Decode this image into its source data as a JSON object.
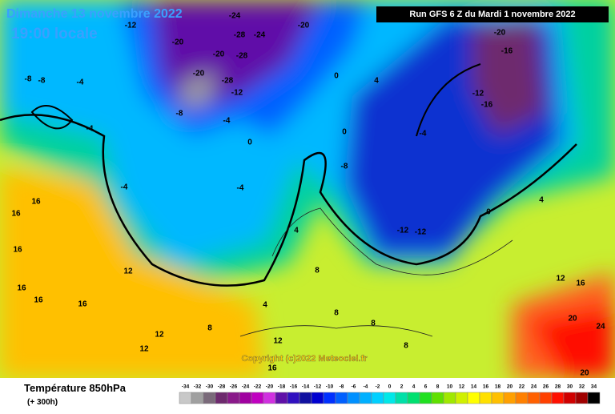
{
  "header": {
    "title": "Dimanche 13 novembre 2022",
    "subtitle": "19:00 locale",
    "run": "Run GFS 6 Z du Mardi 1 novembre 2022"
  },
  "footer": {
    "field": "Température 850hPa",
    "lead": "(+ 300h)",
    "copyright": "Copyright (c)2022 Meteociel.fr"
  },
  "legend": {
    "values": [
      -34,
      -32,
      -30,
      -28,
      -26,
      -24,
      -22,
      -20,
      -18,
      -16,
      -14,
      -12,
      -10,
      -8,
      -6,
      -4,
      -2,
      0,
      2,
      4,
      6,
      8,
      10,
      12,
      14,
      16,
      18,
      20,
      22,
      24,
      26,
      28,
      30,
      32,
      34
    ],
    "colors": [
      "#c8c8c8",
      "#a0a0a0",
      "#7a6a7a",
      "#6e2a6e",
      "#8a1a8a",
      "#a000a0",
      "#c000c0",
      "#d030e0",
      "#6010a8",
      "#3010c0",
      "#1010a0",
      "#0000d0",
      "#0030ff",
      "#0060ff",
      "#0090ff",
      "#00b0ff",
      "#00d0ff",
      "#00e8e8",
      "#00e0a8",
      "#00e070",
      "#20e020",
      "#60e000",
      "#a0e800",
      "#d0f000",
      "#ffff00",
      "#ffe000",
      "#ffc000",
      "#ffa000",
      "#ff8000",
      "#ff6000",
      "#ff4000",
      "#ff1000",
      "#d00000",
      "#a00000",
      "#000000"
    ]
  },
  "map_labels": [
    -12,
    -20,
    -24,
    -24,
    -28,
    -20,
    -20,
    -28,
    -20,
    -28,
    -12,
    -8,
    -8,
    -8,
    -4,
    -4,
    -4,
    -4,
    -4,
    0,
    0,
    4,
    0,
    -8,
    -4,
    -20,
    -16,
    -12,
    -16,
    -12,
    -12,
    0,
    4,
    8,
    8,
    12,
    16,
    16,
    16,
    16,
    16,
    16,
    12,
    12,
    8,
    4,
    12,
    8,
    8,
    16,
    16,
    20,
    24,
    20,
    4,
    12
  ]
}
